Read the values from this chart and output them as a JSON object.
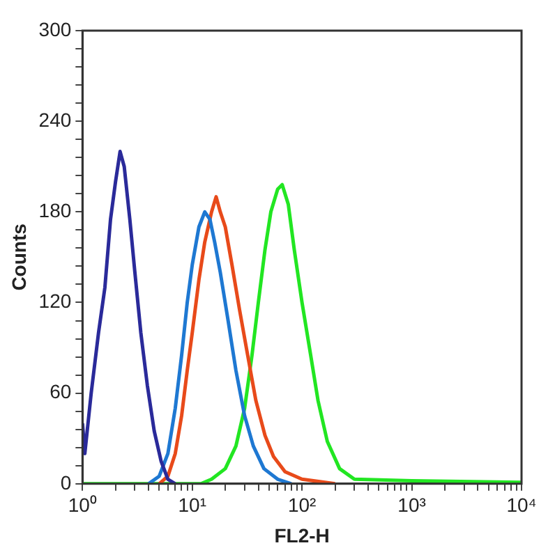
{
  "chart_data": {
    "type": "line",
    "xlabel": "FL2-H",
    "ylabel": "Counts",
    "log": "x",
    "grid": false,
    "legend": false,
    "xlim": [
      1,
      10000
    ],
    "xticks": [
      {
        "value": 1,
        "label": "10⁰"
      },
      {
        "value": 2,
        "label": null
      },
      {
        "value": 3,
        "label": null
      },
      {
        "value": 4,
        "label": null
      },
      {
        "value": 5,
        "label": null
      },
      {
        "value": 6,
        "label": null
      },
      {
        "value": 7,
        "label": null
      },
      {
        "value": 8,
        "label": null
      },
      {
        "value": 9,
        "label": null
      },
      {
        "value": 10,
        "label": "10¹"
      },
      {
        "value": 20,
        "label": null
      },
      {
        "value": 30,
        "label": null
      },
      {
        "value": 40,
        "label": null
      },
      {
        "value": 50,
        "label": null
      },
      {
        "value": 60,
        "label": null
      },
      {
        "value": 70,
        "label": null
      },
      {
        "value": 80,
        "label": null
      },
      {
        "value": 90,
        "label": null
      },
      {
        "value": 100,
        "label": "10²"
      },
      {
        "value": 200,
        "label": null
      },
      {
        "value": 300,
        "label": null
      },
      {
        "value": 400,
        "label": null
      },
      {
        "value": 500,
        "label": null
      },
      {
        "value": 600,
        "label": null
      },
      {
        "value": 700,
        "label": null
      },
      {
        "value": 800,
        "label": null
      },
      {
        "value": 900,
        "label": null
      },
      {
        "value": 1000,
        "label": "10³"
      },
      {
        "value": 2000,
        "label": null
      },
      {
        "value": 3000,
        "label": null
      },
      {
        "value": 4000,
        "label": null
      },
      {
        "value": 5000,
        "label": null
      },
      {
        "value": 6000,
        "label": null
      },
      {
        "value": 7000,
        "label": null
      },
      {
        "value": 8000,
        "label": null
      },
      {
        "value": 9000,
        "label": null
      },
      {
        "value": 10000,
        "label": "10⁴"
      }
    ],
    "ylim": [
      0,
      300
    ],
    "yticks": [
      0,
      {
        "value": 12,
        "label": null
      },
      {
        "value": 24,
        "label": null
      },
      {
        "value": 36,
        "label": null
      },
      {
        "value": 48,
        "label": null
      },
      60,
      {
        "value": 72,
        "label": null
      },
      {
        "value": 84,
        "label": null
      },
      {
        "value": 96,
        "label": null
      },
      {
        "value": 108,
        "label": null
      },
      120,
      {
        "value": 132,
        "label": null
      },
      {
        "value": 144,
        "label": null
      },
      {
        "value": 156,
        "label": null
      },
      {
        "value": 168,
        "label": null
      },
      180,
      {
        "value": 192,
        "label": null
      },
      {
        "value": 204,
        "label": null
      },
      {
        "value": 216,
        "label": null
      },
      {
        "value": 228,
        "label": null
      },
      240,
      {
        "value": 252,
        "label": null
      },
      {
        "value": 264,
        "label": null
      },
      {
        "value": 276,
        "label": null
      },
      {
        "value": 288,
        "label": null
      },
      300
    ],
    "series": [
      {
        "color": "#2a2a9a",
        "x": [
          1,
          1.05,
          1.2,
          1.4,
          1.6,
          1.8,
          2.0,
          2.2,
          2.4,
          2.7,
          3.0,
          3.4,
          3.9,
          4.5,
          5.2,
          6,
          7
        ],
        "values": [
          40,
          20,
          60,
          100,
          130,
          175,
          200,
          220,
          210,
          175,
          140,
          100,
          65,
          35,
          15,
          3,
          0
        ]
      },
      {
        "color": "#1e78d2",
        "x": [
          4,
          5,
          6,
          7,
          8,
          9,
          10,
          11.5,
          13,
          14.5,
          16,
          18,
          21,
          25,
          30,
          36,
          45,
          60,
          80
        ],
        "values": [
          0,
          5,
          20,
          50,
          85,
          120,
          145,
          170,
          180,
          175,
          160,
          140,
          110,
          75,
          45,
          25,
          10,
          3,
          0
        ]
      },
      {
        "color": "#e84a1a",
        "x": [
          5,
          6,
          7,
          8,
          9,
          10,
          11.5,
          13,
          15,
          16.5,
          18,
          20,
          23,
          27,
          32,
          38,
          46,
          55,
          70,
          100,
          200
        ],
        "values": [
          0,
          5,
          20,
          45,
          75,
          100,
          135,
          160,
          180,
          190,
          180,
          170,
          145,
          115,
          85,
          55,
          32,
          18,
          8,
          3,
          0
        ]
      },
      {
        "color": "#22e622",
        "x": [
          1,
          12,
          15,
          20,
          25,
          30,
          35,
          40,
          46,
          52,
          60,
          66,
          75,
          85,
          100,
          120,
          140,
          170,
          220,
          300,
          1000,
          10000
        ],
        "values": [
          0,
          0,
          3,
          10,
          25,
          50,
          85,
          120,
          155,
          180,
          195,
          198,
          185,
          155,
          120,
          85,
          55,
          28,
          10,
          3,
          2,
          1
        ]
      }
    ]
  }
}
